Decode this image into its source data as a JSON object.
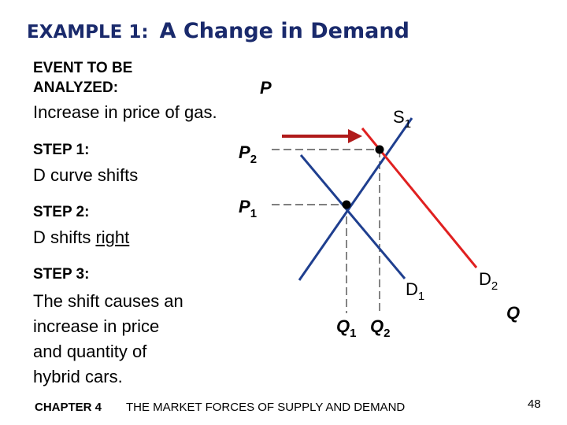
{
  "title": {
    "lead": "EXAMPLE 1:",
    "main": "A Change in Demand"
  },
  "event": {
    "label_line1": "EVENT TO BE",
    "label_line2": "ANALYZED:",
    "text": "Increase in price of gas."
  },
  "step1": {
    "label": "STEP 1:",
    "text": "D curve shifts"
  },
  "step2": {
    "label": "STEP 2:",
    "text_prefix": "D shifts ",
    "text_underlined": "right"
  },
  "step3": {
    "label": "STEP 3:",
    "lines": [
      "The shift causes an",
      "increase in price",
      "and quantity of",
      "hybrid cars."
    ]
  },
  "diagram": {
    "axis_p": "P",
    "axis_q": "Q",
    "supply": {
      "name": "S",
      "sub": "1"
    },
    "demand1": {
      "name": "D",
      "sub": "1"
    },
    "demand2": {
      "name": "D",
      "sub": "2"
    },
    "p1": {
      "name": "P",
      "sub": "1"
    },
    "p2": {
      "name": "P",
      "sub": "2"
    },
    "q1": {
      "name": "Q",
      "sub": "1"
    },
    "q2": {
      "name": "Q",
      "sub": "2"
    },
    "colors": {
      "supply": "#1f3f8f",
      "demand1": "#1f3f8f",
      "demand2": "#e02020",
      "arrow": "#b01a1a",
      "axis": "#000000"
    }
  },
  "footer": {
    "chapter": "CHAPTER 4",
    "book_title": "THE MARKET FORCES OF SUPPLY AND DEMAND",
    "page": "48"
  }
}
